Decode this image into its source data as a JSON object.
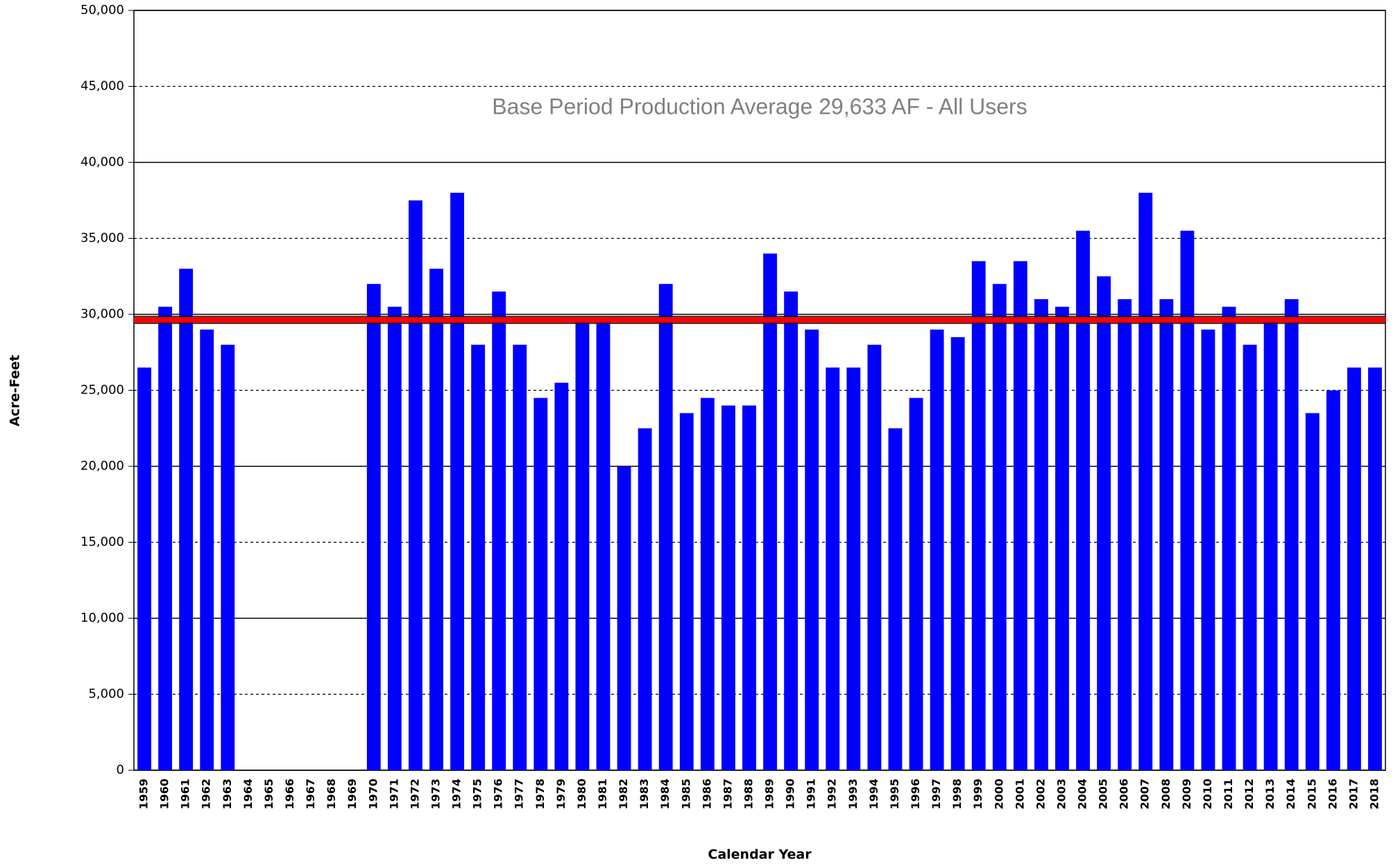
{
  "chart_data": {
    "type": "bar",
    "x_label": "Calendar Year",
    "y_label": "Acre-Feet",
    "annotation": "Base Period Production Average 29,633 AF - All Users",
    "reference_line": {
      "value": 29633,
      "color": "#ff0000"
    },
    "color": "#0000ff",
    "categories": [
      "1959",
      "1960",
      "1961",
      "1962",
      "1963",
      "1964",
      "1965",
      "1966",
      "1967",
      "1968",
      "1969",
      "1970",
      "1971",
      "1972",
      "1973",
      "1974",
      "1975",
      "1976",
      "1977",
      "1978",
      "1979",
      "1980",
      "1981",
      "1982",
      "1983",
      "1984",
      "1985",
      "1986",
      "1987",
      "1988",
      "1989",
      "1990",
      "1991",
      "1992",
      "1993",
      "1994",
      "1995",
      "1996",
      "1997",
      "1998",
      "1999",
      "2000",
      "2001",
      "2002",
      "2003",
      "2004",
      "2005",
      "2006",
      "2007",
      "2008",
      "2009",
      "2010",
      "2011",
      "2012",
      "2013",
      "2014",
      "2015",
      "2016",
      "2017",
      "2018"
    ],
    "values": [
      26500,
      30500,
      33000,
      29000,
      28000,
      null,
      null,
      null,
      null,
      null,
      null,
      32000,
      30500,
      37500,
      33000,
      38000,
      28000,
      31500,
      28000,
      24500,
      25500,
      29800,
      29800,
      20000,
      22500,
      32000,
      23500,
      24500,
      24000,
      24000,
      34000,
      31500,
      29000,
      26500,
      26500,
      28000,
      22500,
      24500,
      29000,
      28500,
      33500,
      32000,
      33500,
      31000,
      30500,
      35500,
      32500,
      31000,
      38000,
      31000,
      35500,
      29000,
      30500,
      28000,
      29800,
      31000,
      23500,
      25000,
      26500,
      26500
    ],
    "ylim": [
      0,
      50000
    ],
    "yticks": [
      0,
      {
        "value": 5000,
        "label": "5,000"
      },
      {
        "value": 10000,
        "label": "10,000"
      },
      {
        "value": 15000,
        "label": "15,000"
      },
      {
        "value": 20000,
        "label": "20,000"
      },
      {
        "value": 25000,
        "label": "25,000"
      },
      {
        "value": 30000,
        "label": "30,000"
      },
      {
        "value": 35000,
        "label": "35,000"
      },
      {
        "value": 40000,
        "label": "40,000"
      },
      {
        "value": 45000,
        "label": "45,000"
      },
      {
        "value": 50000,
        "label": "50,000"
      }
    ],
    "grid": true
  }
}
